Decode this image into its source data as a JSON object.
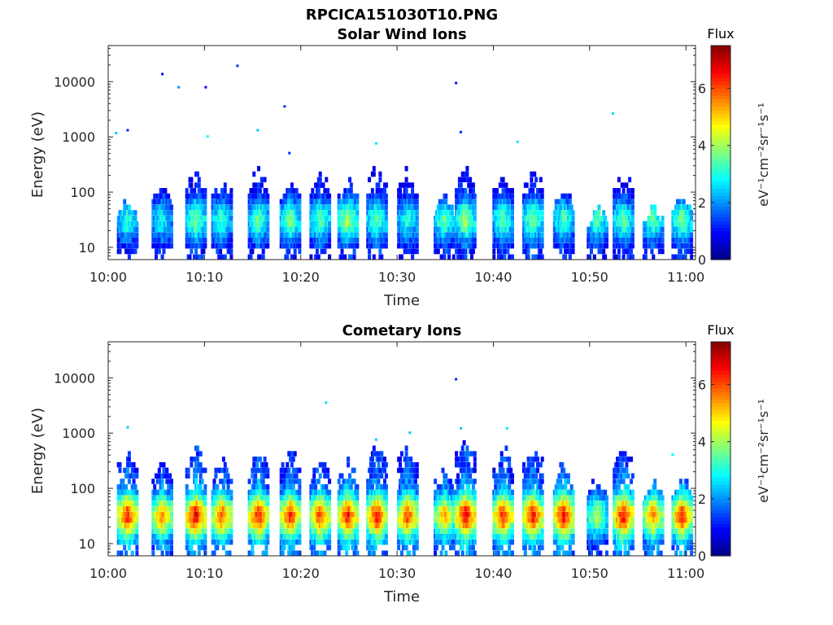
{
  "figure": {
    "title": "RPCICA151030T10.PNG"
  },
  "chart_data": [
    {
      "type": "heatmap",
      "title": "Solar Wind Ions",
      "xlabel": "Time",
      "ylabel": "Energy (eV)",
      "x_ticks": [
        "10:00",
        "10:10",
        "10:20",
        "10:30",
        "10:40",
        "10:50",
        "11:00"
      ],
      "x_range_minutes": [
        0,
        61
      ],
      "y_scale": "log",
      "y_ticks": [
        "10",
        "100",
        "1000",
        "10000"
      ],
      "y_range": [
        6,
        45000
      ],
      "colorbar": {
        "title": "Flux",
        "label": "eV⁻¹cm⁻²sr⁻¹s⁻¹",
        "ticks": [
          "0",
          "2",
          "4",
          "6"
        ],
        "range": [
          0,
          7.5
        ],
        "colormap": "jet"
      },
      "bursts": [
        {
          "t": 1.9,
          "emax": 60,
          "fmax": 3.2
        },
        {
          "t": 5.5,
          "emax": 120,
          "fmax": 3.0
        },
        {
          "t": 9.0,
          "emax": 250,
          "fmax": 3.8
        },
        {
          "t": 11.7,
          "emax": 150,
          "fmax": 3.4
        },
        {
          "t": 15.5,
          "emax": 250,
          "fmax": 3.6
        },
        {
          "t": 18.8,
          "emax": 150,
          "fmax": 3.8
        },
        {
          "t": 21.9,
          "emax": 200,
          "fmax": 3.6
        },
        {
          "t": 24.8,
          "emax": 150,
          "fmax": 4.2
        },
        {
          "t": 27.8,
          "emax": 300,
          "fmax": 3.6
        },
        {
          "t": 31.0,
          "emax": 350,
          "fmax": 3.2
        },
        {
          "t": 34.8,
          "emax": 80,
          "fmax": 3.6
        },
        {
          "t": 37.0,
          "emax": 250,
          "fmax": 4.0
        },
        {
          "t": 40.9,
          "emax": 200,
          "fmax": 3.6
        },
        {
          "t": 44.0,
          "emax": 250,
          "fmax": 3.8
        },
        {
          "t": 47.2,
          "emax": 100,
          "fmax": 3.4
        },
        {
          "t": 50.7,
          "emax": 50,
          "fmax": 3.4
        },
        {
          "t": 53.4,
          "emax": 200,
          "fmax": 3.6
        },
        {
          "t": 56.5,
          "emax": 50,
          "fmax": 3.6
        },
        {
          "t": 59.5,
          "emax": 80,
          "fmax": 3.8
        }
      ],
      "outliers": [
        {
          "t": 0.7,
          "e": 1150,
          "f": 2.4
        },
        {
          "t": 1.9,
          "e": 1300,
          "f": 1.2
        },
        {
          "t": 5.5,
          "e": 13500,
          "f": 1.0
        },
        {
          "t": 7.2,
          "e": 7800,
          "f": 2.0
        },
        {
          "t": 10.0,
          "e": 7800,
          "f": 0.9
        },
        {
          "t": 10.2,
          "e": 1000,
          "f": 2.8
        },
        {
          "t": 13.3,
          "e": 19000,
          "f": 1.2
        },
        {
          "t": 15.4,
          "e": 1300,
          "f": 2.4
        },
        {
          "t": 18.2,
          "e": 3500,
          "f": 1.2
        },
        {
          "t": 18.7,
          "e": 500,
          "f": 1.2
        },
        {
          "t": 27.7,
          "e": 750,
          "f": 2.6
        },
        {
          "t": 36.0,
          "e": 9300,
          "f": 1.0
        },
        {
          "t": 36.5,
          "e": 1200,
          "f": 1.2
        },
        {
          "t": 42.4,
          "e": 800,
          "f": 2.6
        },
        {
          "t": 52.3,
          "e": 2600,
          "f": 2.6
        }
      ]
    },
    {
      "type": "heatmap",
      "title": "Cometary Ions",
      "xlabel": "Time",
      "ylabel": "Energy (eV)",
      "x_ticks": [
        "10:00",
        "10:10",
        "10:20",
        "10:30",
        "10:40",
        "10:50",
        "11:00"
      ],
      "x_range_minutes": [
        0,
        61
      ],
      "y_scale": "log",
      "y_ticks": [
        "10",
        "100",
        "1000",
        "10000"
      ],
      "y_range": [
        6,
        45000
      ],
      "colorbar": {
        "title": "Flux",
        "label": "eV⁻¹cm⁻²sr⁻¹s⁻¹",
        "ticks": [
          "0",
          "2",
          "4",
          "6"
        ],
        "range": [
          0,
          7.5
        ],
        "colormap": "jet"
      },
      "bursts": [
        {
          "t": 1.9,
          "emax": 500,
          "fmax": 6.4
        },
        {
          "t": 5.5,
          "emax": 300,
          "fmax": 5.6
        },
        {
          "t": 9.0,
          "emax": 500,
          "fmax": 6.8
        },
        {
          "t": 11.7,
          "emax": 300,
          "fmax": 6.0
        },
        {
          "t": 15.5,
          "emax": 400,
          "fmax": 6.6
        },
        {
          "t": 18.8,
          "emax": 400,
          "fmax": 6.4
        },
        {
          "t": 21.9,
          "emax": 300,
          "fmax": 6.2
        },
        {
          "t": 24.8,
          "emax": 300,
          "fmax": 6.6
        },
        {
          "t": 27.8,
          "emax": 500,
          "fmax": 6.6
        },
        {
          "t": 31.0,
          "emax": 500,
          "fmax": 6.2
        },
        {
          "t": 34.8,
          "emax": 200,
          "fmax": 5.4
        },
        {
          "t": 37.0,
          "emax": 600,
          "fmax": 6.8
        },
        {
          "t": 40.9,
          "emax": 500,
          "fmax": 6.4
        },
        {
          "t": 44.0,
          "emax": 500,
          "fmax": 6.6
        },
        {
          "t": 47.2,
          "emax": 250,
          "fmax": 6.8
        },
        {
          "t": 50.7,
          "emax": 150,
          "fmax": 4.2
        },
        {
          "t": 53.4,
          "emax": 500,
          "fmax": 6.8
        },
        {
          "t": 56.5,
          "emax": 120,
          "fmax": 5.6
        },
        {
          "t": 59.5,
          "emax": 150,
          "fmax": 6.4
        }
      ],
      "outliers": [
        {
          "t": 1.9,
          "e": 1250,
          "f": 2.4
        },
        {
          "t": 22.5,
          "e": 3500,
          "f": 2.6
        },
        {
          "t": 27.7,
          "e": 750,
          "f": 2.4
        },
        {
          "t": 31.2,
          "e": 1000,
          "f": 2.4
        },
        {
          "t": 36.0,
          "e": 9300,
          "f": 1.2
        },
        {
          "t": 36.5,
          "e": 1200,
          "f": 2.4
        },
        {
          "t": 41.3,
          "e": 1200,
          "f": 2.6
        },
        {
          "t": 58.5,
          "e": 400,
          "f": 2.8
        }
      ]
    }
  ]
}
